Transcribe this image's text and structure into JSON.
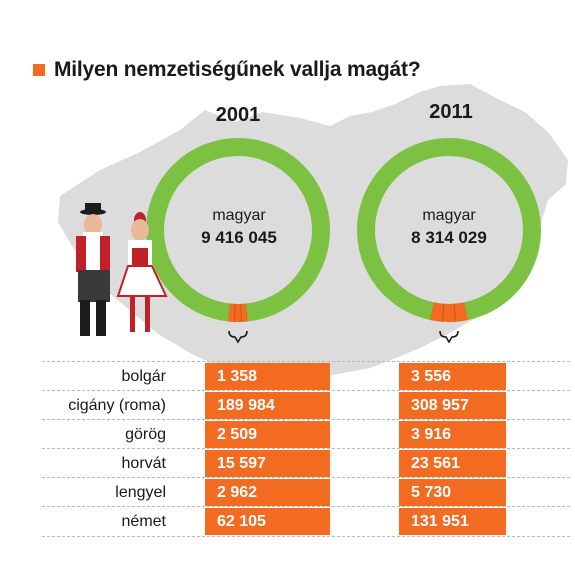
{
  "title": "Milyen nemzetiségűnek vallja magát?",
  "colors": {
    "accent": "#f26b21",
    "green": "#7cc142",
    "map_gray": "#dcdcdc",
    "text": "#1a1a1a"
  },
  "chart_data": {
    "type": "table",
    "years": [
      "2001",
      "2011"
    ],
    "donuts": [
      {
        "year": "2001",
        "main_label": "magyar",
        "main_value_text": "9 416 045",
        "main_value": 9416045
      },
      {
        "year": "2011",
        "main_label": "magyar",
        "main_value_text": "8 314 029",
        "main_value": 8314029
      }
    ],
    "categories": [
      "bolgár",
      "cigány (roma)",
      "görög",
      "horvát",
      "lengyel",
      "német"
    ],
    "series": [
      {
        "name": "2001",
        "values": [
          1358,
          189984,
          2509,
          15597,
          2962,
          62105
        ],
        "labels": [
          "1 358",
          "189 984",
          "2 509",
          "15 597",
          "2 962",
          "62 105"
        ]
      },
      {
        "name": "2011",
        "values": [
          3556,
          308957,
          3916,
          23561,
          5730,
          131951
        ],
        "labels": [
          "3 556",
          "308 957",
          "3 916",
          "23 561",
          "5 730",
          "131 951"
        ]
      }
    ],
    "minority_share": [
      0.035,
      0.066
    ]
  }
}
